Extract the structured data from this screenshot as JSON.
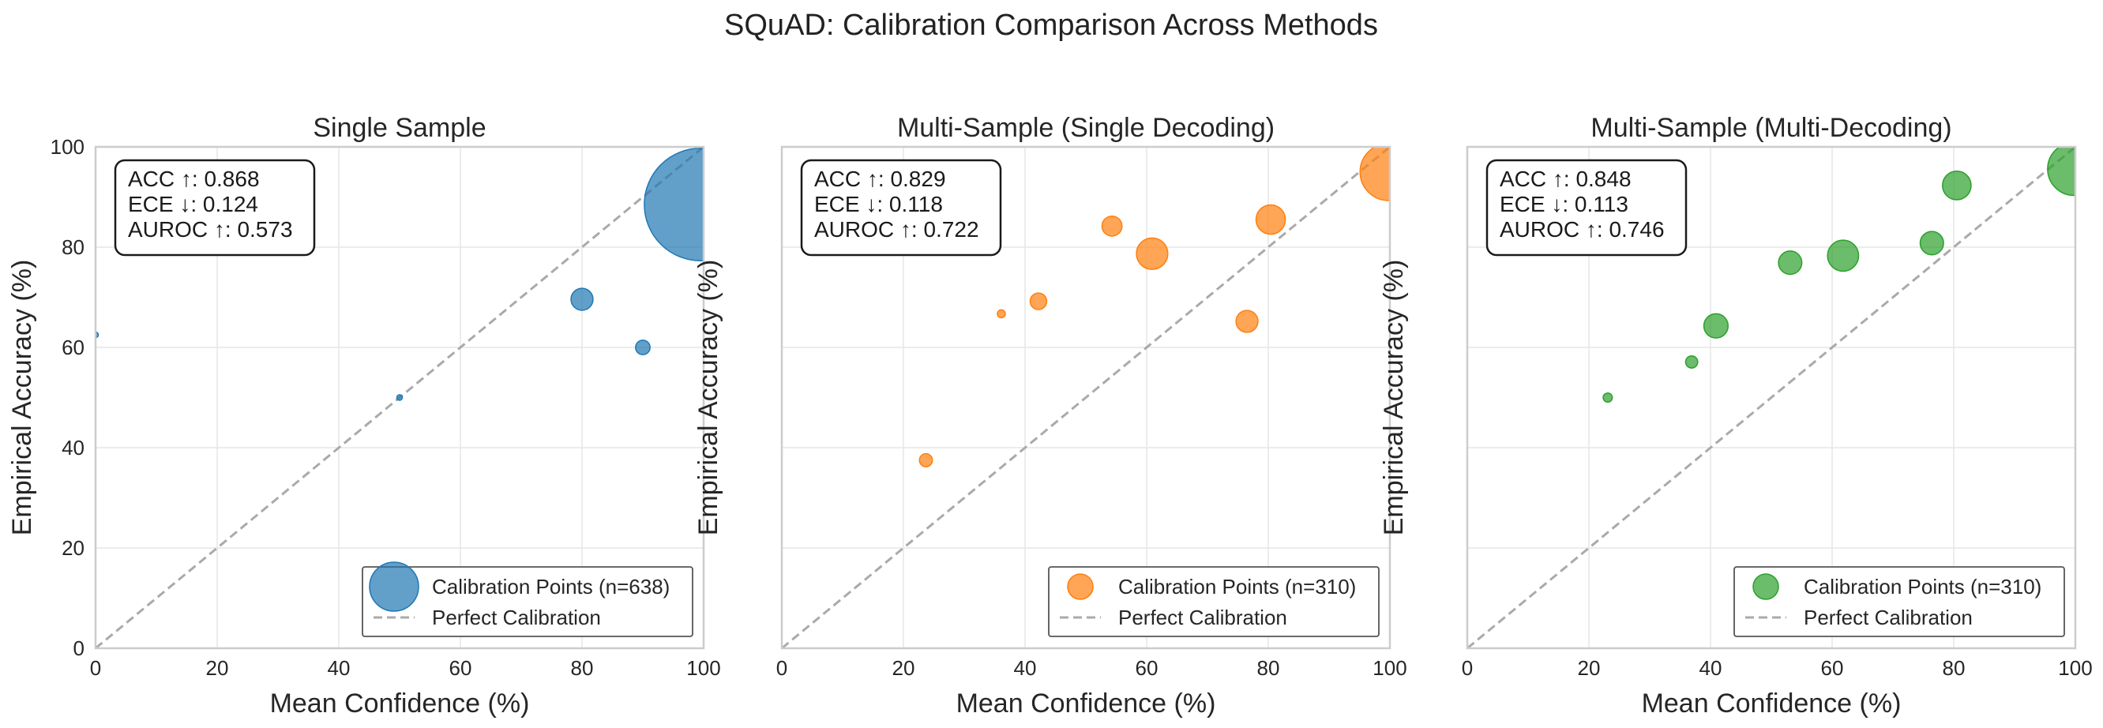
{
  "figure_title": "SQuAD: Calibration Comparison Across Methods",
  "colors": {
    "panel_1": "#1f77b4",
    "panel_2": "#ff7f0e",
    "panel_3": "#2ca02c",
    "diagonal": "#aaaaaa",
    "grid": "#e6e6e6",
    "frame": "#cccccc"
  },
  "chart_data": [
    {
      "type": "scatter",
      "title": "Single Sample",
      "xlabel": "Mean Confidence (%)",
      "ylabel": "Empirical Accuracy (%)",
      "xlim": [
        0,
        100
      ],
      "ylim": [
        0,
        100
      ],
      "xticks": [
        0,
        20,
        40,
        60,
        80,
        100
      ],
      "yticks": [
        0,
        20,
        40,
        60,
        80,
        100
      ],
      "grid": true,
      "color_key": "panel_1",
      "legend_position": "lower-right",
      "legend": [
        "Calibration Points (n=638)",
        "Perfect Calibration"
      ],
      "metrics": [
        "ACC ↑: 0.868",
        "ECE ↓: 0.124",
        "AUROC ↑: 0.573"
      ],
      "points": [
        {
          "x": 0,
          "y": 62.5,
          "count": 1
        },
        {
          "x": 50,
          "y": 50,
          "count": 1
        },
        {
          "x": 80,
          "y": 69.6,
          "count": 23
        },
        {
          "x": 90,
          "y": 60,
          "count": 10
        },
        {
          "x": 99.5,
          "y": 88.5,
          "count": 603
        }
      ]
    },
    {
      "type": "scatter",
      "title": "Multi-Sample (Single Decoding)",
      "xlabel": "Mean Confidence (%)",
      "ylabel": "Empirical Accuracy (%)",
      "xlim": [
        0,
        100
      ],
      "ylim": [
        0,
        100
      ],
      "xticks": [
        0,
        20,
        40,
        60,
        80,
        100
      ],
      "yticks": [],
      "grid": true,
      "color_key": "panel_2",
      "legend_position": "lower-right",
      "legend": [
        "Calibration Points (n=310)",
        "Perfect Calibration"
      ],
      "metrics": [
        "ACC ↑: 0.829",
        "ECE ↓: 0.118",
        "AUROC ↑: 0.722"
      ],
      "points": [
        {
          "x": 23.7,
          "y": 37.5,
          "count": 8
        },
        {
          "x": 36.1,
          "y": 66.7,
          "count": 3
        },
        {
          "x": 42.2,
          "y": 69.2,
          "count": 13
        },
        {
          "x": 54.3,
          "y": 84.2,
          "count": 19
        },
        {
          "x": 60.9,
          "y": 78.7,
          "count": 47
        },
        {
          "x": 76.5,
          "y": 65.2,
          "count": 23
        },
        {
          "x": 80.4,
          "y": 85.5,
          "count": 41
        },
        {
          "x": 99.8,
          "y": 95.0,
          "count": 156
        }
      ]
    },
    {
      "type": "scatter",
      "title": "Multi-Sample (Multi-Decoding)",
      "xlabel": "Mean Confidence (%)",
      "ylabel": "Empirical Accuracy (%)",
      "xlim": [
        0,
        100
      ],
      "ylim": [
        0,
        100
      ],
      "xticks": [
        0,
        20,
        40,
        60,
        80,
        100
      ],
      "yticks": [],
      "grid": true,
      "color_key": "panel_3",
      "legend_position": "lower-right",
      "legend": [
        "Calibration Points (n=310)",
        "Perfect Calibration"
      ],
      "metrics": [
        "ACC ↑: 0.848",
        "ECE ↓: 0.113",
        "AUROC ↑: 0.746"
      ],
      "points": [
        {
          "x": 23.1,
          "y": 50.0,
          "count": 4
        },
        {
          "x": 36.9,
          "y": 57.1,
          "count": 7
        },
        {
          "x": 40.9,
          "y": 64.3,
          "count": 28
        },
        {
          "x": 53.1,
          "y": 76.9,
          "count": 26
        },
        {
          "x": 61.8,
          "y": 78.3,
          "count": 46
        },
        {
          "x": 76.4,
          "y": 80.8,
          "count": 26
        },
        {
          "x": 80.5,
          "y": 92.3,
          "count": 39
        },
        {
          "x": 99.8,
          "y": 95.6,
          "count": 134
        }
      ]
    }
  ]
}
